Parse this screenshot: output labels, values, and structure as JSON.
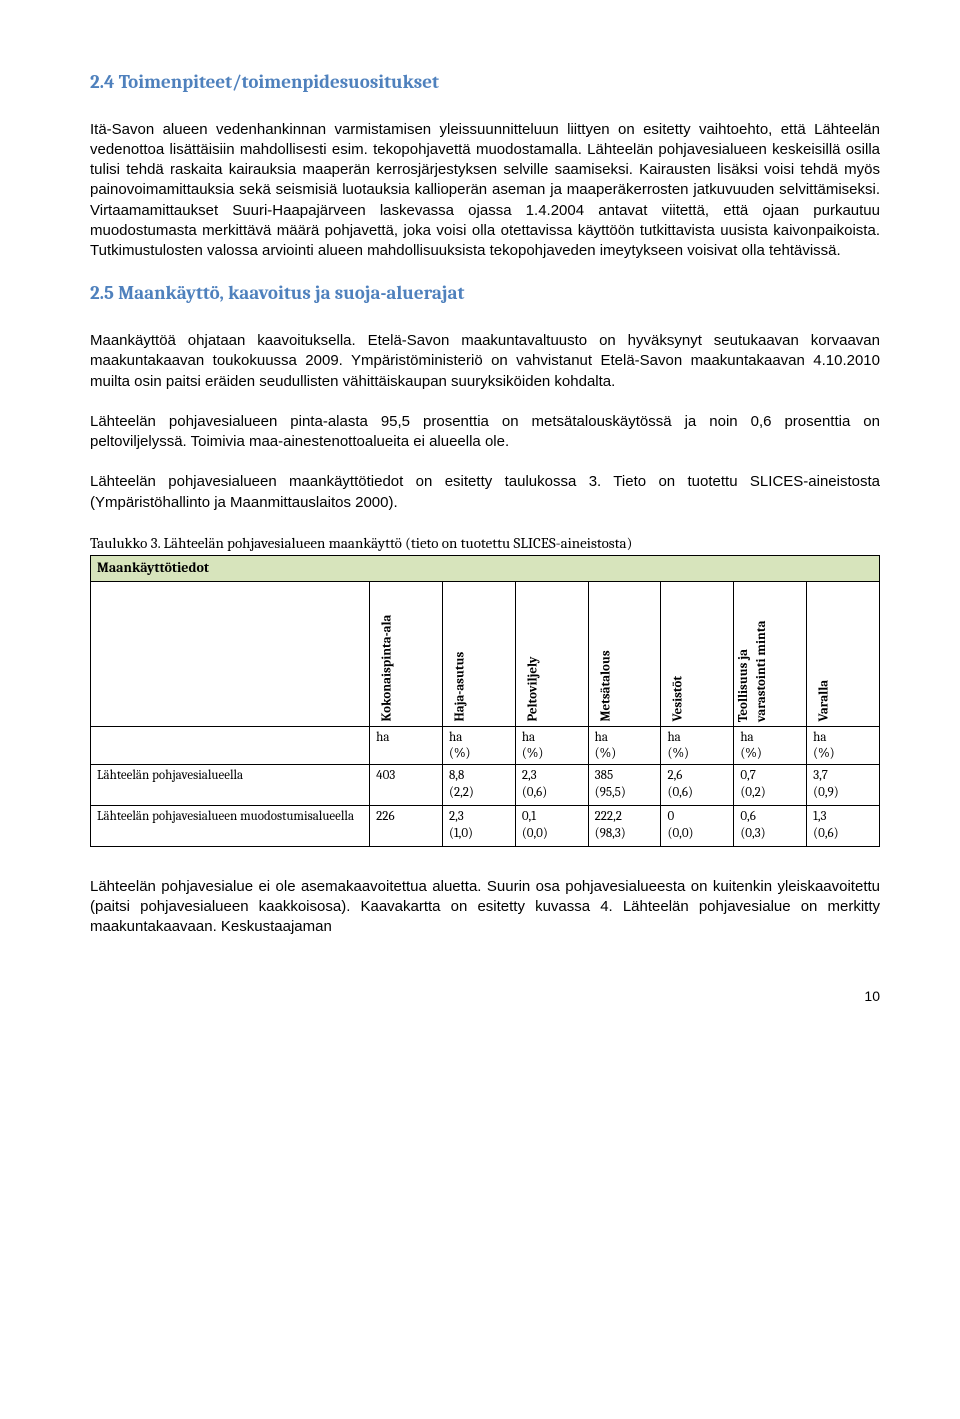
{
  "section24": {
    "title": "2.4 Toimenpiteet/toimenpidesuositukset",
    "p1": "Itä-Savon alueen vedenhankinnan varmistamisen yleissuunnitteluun liittyen on esitetty vaihtoehto, että Lähteelän vedenottoa lisättäisiin mahdollisesti esim. tekopohjavettä muodostamalla. Lähteelän pohjavesialueen keskeisillä osilla tulisi tehdä raskaita kairauksia maaperän kerrosjärjestyksen selville saamiseksi. Kairausten lisäksi voisi tehdä myös painovoimamittauksia sekä seismisiä luotauksia kallioperän aseman ja maaperäkerrosten jatkuvuuden selvittämiseksi. Virtaamamittaukset Suuri-Haapajärveen laskevassa ojassa 1.4.2004 antavat viitettä, että ojaan purkautuu muodostumasta merkittävä määrä pohjavettä, joka voisi olla otettavissa käyttöön tutkittavista uusista kaivonpaikoista. Tutkimustulosten valossa arviointi alueen mahdollisuuksista tekopohjaveden imeytykseen voisivat olla tehtävissä."
  },
  "section25": {
    "title": "2.5 Maankäyttö, kaavoitus ja suoja-aluerajat",
    "p1": "Maankäyttöä ohjataan kaavoituksella. Etelä-Savon maakuntavaltuusto on hyväksynyt seutukaavan korvaavan maakuntakaavan toukokuussa 2009. Ympäristöministeriö on vahvistanut Etelä-Savon maakuntakaavan 4.10.2010 muilta osin paitsi eräiden seudullisten vähittäiskaupan suuryksiköiden kohdalta.",
    "p2": "Lähteelän pohjavesialueen pinta-alasta 95,5 prosenttia on metsätalouskäytössä ja noin 0,6 prosenttia on peltoviljelyssä. Toimivia maa-ainestenottoalueita ei alueella ole.",
    "p3": "Lähteelän pohjavesialueen maankäyttötiedot on esitetty taulukossa 3. Tieto on tuotettu SLICES-aineistosta (Ympäristöhallinto ja Maanmittauslaitos 2000)."
  },
  "table": {
    "caption": "Taulukko 3. Lähteelän pohjavesialueen maankäyttö (tieto on tuotettu SLICES-aineistosta)",
    "header_label": "Maankäyttötiedot",
    "cols": {
      "c1": "Kokonaispinta-ala",
      "c2": "Haja-asutus",
      "c3": "Peltoviljely",
      "c4": "Metsätalous",
      "c5": "Vesistöt",
      "c6": "Teollisuus ja varastointi minta",
      "c7": "Varalla"
    },
    "units": {
      "u0": "",
      "u1": "ha",
      "u2": "ha\n(%)",
      "u3": "ha\n(%)",
      "u4": "ha\n(%)",
      "u5": "ha\n(%)",
      "u6": "ha\n(%)",
      "u7": "ha\n(%)"
    },
    "row1": {
      "label": "Lähteelän pohjavesialueella",
      "c1": "403",
      "c2": "8,8\n(2,2)",
      "c3": "2,3\n(0,6)",
      "c4": "385\n(95,5)",
      "c5": "2,6\n(0,6)",
      "c6": "0,7\n(0,2)",
      "c7": "3,7\n(0,9)"
    },
    "row2": {
      "label": "Lähteelän pohjavesialueen muodostumisalueella",
      "c1": "226",
      "c2": "2,3\n(1,0)",
      "c3": "0,1\n(0,0)",
      "c4": "222,2\n(98,3)",
      "c5": "0\n(0,0)",
      "c6": "0,6\n(0,3)",
      "c7": "1,3\n(0,6)"
    }
  },
  "footer": {
    "p": "Lähteelän pohjavesialue ei ole asemakaavoitettua aluetta. Suurin osa pohjavesialueesta on kuitenkin yleiskaavoitettu (paitsi pohjavesialueen kaakkoisosa). Kaavakartta on esitetty kuvassa 4. Lähteelän pohjavesialue on merkitty maakuntakaavaan. Keskustaajaman",
    "pagenum": "10"
  },
  "colors": {
    "heading": "#4f81bd",
    "table_header_bg": "#d7e4bc"
  }
}
